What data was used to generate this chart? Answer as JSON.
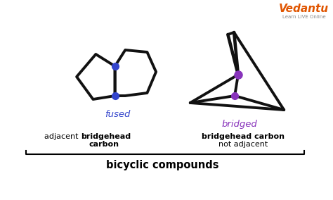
{
  "bg_color": "#ffffff",
  "fused_label": "fused",
  "fused_color": "#3344cc",
  "fused_dot_color": "#3344cc",
  "bridged_label": "bridged",
  "bridged_color": "#8833bb",
  "bridged_dot_color": "#8833bb",
  "bottom_label": "bicyclic compounds",
  "vedantu_text": "Vedantu",
  "vedantu_sub": "Learn LIVE Online",
  "vedantu_color": "#e05500",
  "line_color": "#111111",
  "line_width": 2.8
}
